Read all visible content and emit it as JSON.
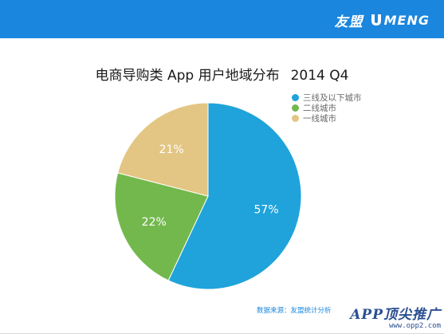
{
  "header": {
    "brand_cn": "友盟",
    "brand_en": "MENG",
    "bar_color": "#1a86de"
  },
  "chart_data": {
    "type": "pie",
    "title": "电商导购类 App 用户地域分布",
    "period": "2014 Q4",
    "legend_position": "top-right",
    "slices": [
      {
        "name": "三线及以下城市",
        "value": 57,
        "label": "57%",
        "color": "#1fa3da"
      },
      {
        "name": "二线城市",
        "value": 22,
        "label": "22%",
        "color": "#73b84d"
      },
      {
        "name": "一线城市",
        "value": 21,
        "label": "21%",
        "color": "#e3c683"
      }
    ]
  },
  "footer": {
    "source": "数据来源：友盟统计分析"
  },
  "watermark": {
    "main": "APP顶尖推广",
    "url": "www.opp2.com"
  }
}
